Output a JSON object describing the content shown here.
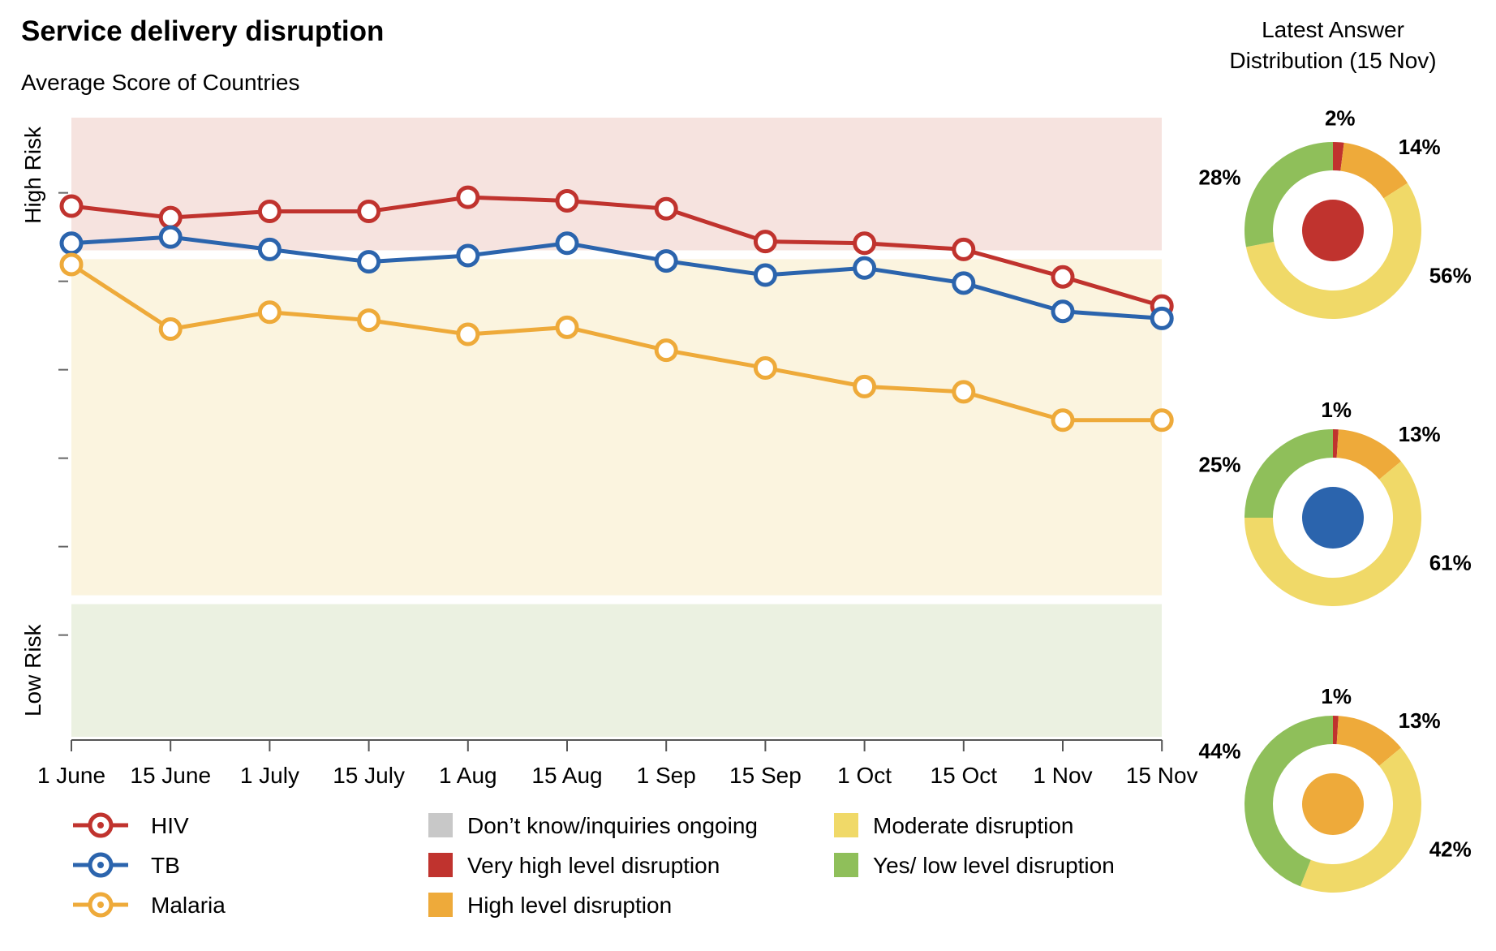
{
  "colors": {
    "hiv": "#c0332e",
    "tb": "#2b64ad",
    "malaria": "#eeaa3a",
    "dont_know": "#c8c8c8",
    "very_high": "#c0332e",
    "high": "#eeaa3a",
    "moderate": "#f0d968",
    "low": "#8fbf5a",
    "zone_high": "#f6e3df",
    "zone_moderate": "#fbf4df",
    "zone_low": "#ebf1e1"
  },
  "chart_data": [
    {
      "type": "line",
      "title": "Service delivery disruption",
      "subtitle": "Average Score of Countries",
      "categories": [
        "1 June",
        "15 June",
        "1 July",
        "15 July",
        "1 Aug",
        "15 Aug",
        "1 Sep",
        "15 Sep",
        "1 Oct",
        "15 Oct",
        "1 Nov",
        "15 Nov"
      ],
      "ylim": [
        0,
        7
      ],
      "zones": [
        {
          "label": "High Risk",
          "from": 5.5,
          "to": 7,
          "color": "zone_high"
        },
        {
          "label": "",
          "from": 1.6,
          "to": 5.4,
          "color": "zone_moderate"
        },
        {
          "label": "Low Risk",
          "from": 0,
          "to": 1.5,
          "color": "zone_low"
        }
      ],
      "series": [
        {
          "name": "HIV",
          "color": "hiv",
          "values": [
            6.0,
            5.87,
            5.94,
            5.94,
            6.1,
            6.06,
            5.97,
            5.6,
            5.58,
            5.51,
            5.2,
            4.87
          ]
        },
        {
          "name": "TB",
          "color": "tb",
          "values": [
            5.58,
            5.65,
            5.51,
            5.37,
            5.44,
            5.58,
            5.38,
            5.22,
            5.3,
            5.13,
            4.81,
            4.73
          ]
        },
        {
          "name": "Malaria",
          "color": "malaria",
          "values": [
            5.34,
            4.61,
            4.8,
            4.71,
            4.55,
            4.63,
            4.37,
            4.17,
            3.96,
            3.9,
            3.58,
            3.58
          ]
        }
      ],
      "y_zone_labels": [
        "High Risk",
        "Low Risk"
      ],
      "grid": false
    },
    {
      "type": "pie",
      "title": "Latest Answer Distribution (15 Nov)",
      "title_lines": [
        "Latest Answer",
        "Distribution (15 Nov)"
      ],
      "donuts": [
        {
          "series": "HIV",
          "center_color": "hiv",
          "slices": [
            {
              "category": "Very high level disruption",
              "value": 2,
              "label": "2%"
            },
            {
              "category": "High level disruption",
              "value": 14,
              "label": "14%"
            },
            {
              "category": "Moderate disruption",
              "value": 56,
              "label": "56%"
            },
            {
              "category": "Yes/ low level disruption",
              "value": 28,
              "label": "28%"
            }
          ]
        },
        {
          "series": "TB",
          "center_color": "tb",
          "slices": [
            {
              "category": "Very high level disruption",
              "value": 1,
              "label": "1%"
            },
            {
              "category": "High level disruption",
              "value": 13,
              "label": "13%"
            },
            {
              "category": "Moderate disruption",
              "value": 61,
              "label": "61%"
            },
            {
              "category": "Yes/ low level disruption",
              "value": 25,
              "label": "25%"
            }
          ]
        },
        {
          "series": "Malaria",
          "center_color": "malaria",
          "slices": [
            {
              "category": "Very high level disruption",
              "value": 1,
              "label": "1%"
            },
            {
              "category": "High level disruption",
              "value": 13,
              "label": "13%"
            },
            {
              "category": "Moderate disruption",
              "value": 42,
              "label": "42%"
            },
            {
              "category": "Yes/ low level disruption",
              "value": 44,
              "label": "44%"
            }
          ]
        }
      ]
    }
  ],
  "legend": {
    "series": [
      {
        "label": "HIV",
        "color": "hiv"
      },
      {
        "label": "TB",
        "color": "tb"
      },
      {
        "label": "Malaria",
        "color": "malaria"
      }
    ],
    "categories": [
      {
        "label": "Don’t know/inquiries ongoing",
        "color": "dont_know"
      },
      {
        "label": "Very high level disruption",
        "color": "very_high"
      },
      {
        "label": "High level disruption",
        "color": "high"
      },
      {
        "label": "Moderate disruption",
        "color": "moderate"
      },
      {
        "label": "Yes/ low level disruption",
        "color": "low"
      }
    ]
  }
}
